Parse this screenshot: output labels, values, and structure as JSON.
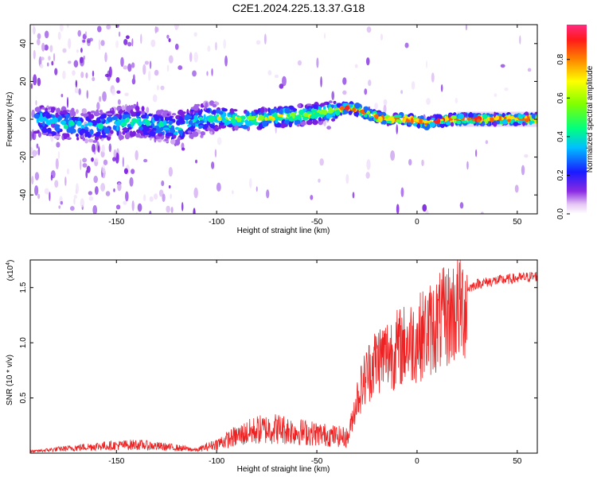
{
  "title": "C2E1.2024.225.13.37.G18",
  "chart_data": [
    {
      "type": "heatmap",
      "xlabel": "Height of straight line (km)",
      "ylabel": "Frequency (Hz)",
      "xlim": [
        -193,
        60
      ],
      "ylim": [
        -50,
        50
      ],
      "xticks": [
        -150,
        -100,
        -50,
        0,
        50
      ],
      "yticks": [
        -40,
        -20,
        0,
        20,
        40
      ],
      "colorbar": {
        "label": "Normalized spectral amplitude",
        "range": [
          0,
          0.98
        ],
        "ticks": [
          0.0,
          0.2,
          0.4,
          0.6,
          0.8
        ]
      },
      "ridge": {
        "x": [
          -190,
          -180,
          -170,
          -160,
          -150,
          -140,
          -130,
          -120,
          -110,
          -100,
          -90,
          -80,
          -70,
          -60,
          -50,
          -40,
          -35,
          -30,
          -25,
          -20,
          -15,
          -10,
          -5,
          0,
          5,
          10,
          20,
          30,
          40,
          50,
          60
        ],
        "y": [
          0,
          -2,
          -3,
          -4,
          -2,
          -1,
          -3,
          -5,
          0,
          1,
          0,
          0,
          1,
          2,
          3,
          5,
          6,
          5,
          3,
          1,
          0,
          0,
          0,
          -1,
          -2,
          -1,
          0,
          0,
          0,
          0,
          0
        ]
      }
    },
    {
      "type": "line",
      "xlabel": "Height of straight line (km)",
      "ylabel": "SNR (10 * v/v)",
      "scale_label": "(x10",
      "scale_exp": "4",
      "xlim": [
        -193,
        60
      ],
      "ylim": [
        0,
        1.75
      ],
      "xticks": [
        -150,
        -100,
        -50,
        0,
        50
      ],
      "yticks": [
        0.5,
        1.0,
        1.5
      ],
      "color": "#ee2222",
      "envelope": {
        "x": [
          -193,
          -180,
          -160,
          -140,
          -120,
          -110,
          -100,
          -90,
          -80,
          -70,
          -60,
          -50,
          -40,
          -34,
          -30,
          -25,
          -20,
          -10,
          0,
          10,
          20,
          30,
          40,
          50,
          60
        ],
        "y": [
          0.02,
          0.05,
          0.09,
          0.11,
          0.07,
          0.04,
          0.12,
          0.22,
          0.3,
          0.32,
          0.28,
          0.25,
          0.22,
          0.2,
          0.55,
          0.8,
          0.95,
          1.05,
          1.15,
          1.3,
          1.45,
          1.55,
          1.58,
          1.6,
          1.62
        ]
      }
    }
  ]
}
